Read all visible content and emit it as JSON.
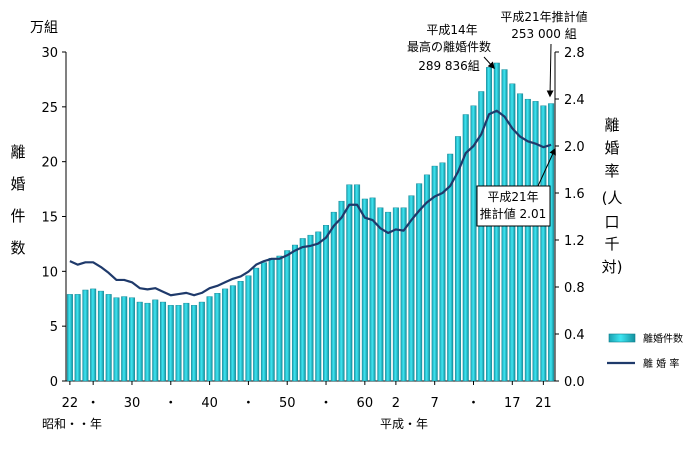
{
  "chart_data": {
    "type": "bar+line",
    "left_unit": "万組",
    "left_axis_label_chars": [
      "離",
      "婚",
      "件",
      "数"
    ],
    "right_axis_label_chars": [
      "離",
      "婚",
      "率",
      "(人",
      "口",
      "千",
      "対)"
    ],
    "ylim_left": [
      0,
      30
    ],
    "left_ticks": [
      "0",
      "5",
      "10",
      "15",
      "20",
      "25",
      "30"
    ],
    "ylim_right": [
      0.0,
      2.8
    ],
    "right_ticks": [
      "0.0",
      "0.4",
      "0.8",
      "1.2",
      "1.6",
      "2.0",
      "2.4",
      "2.8"
    ],
    "x_tick_labels": [
      {
        "label": "22",
        "index": 0
      },
      {
        "label": "・",
        "index": 3
      },
      {
        "label": "30",
        "index": 8
      },
      {
        "label": "・",
        "index": 13
      },
      {
        "label": "40",
        "index": 18
      },
      {
        "label": "・",
        "index": 23
      },
      {
        "label": "50",
        "index": 28
      },
      {
        "label": "・",
        "index": 33
      },
      {
        "label": "60",
        "index": 38
      },
      {
        "label": "2",
        "index": 42
      },
      {
        "label": "7",
        "index": 47
      },
      {
        "label": "・",
        "index": 52
      },
      {
        "label": "17",
        "index": 57
      },
      {
        "label": "21",
        "index": 61
      }
    ],
    "era_labels": {
      "showa": "昭和・・年",
      "heisei": "平成・年"
    },
    "years": [
      "昭和22",
      "23",
      "24",
      "25",
      "26",
      "27",
      "28",
      "29",
      "30",
      "31",
      "32",
      "33",
      "34",
      "35",
      "36",
      "37",
      "38",
      "39",
      "40",
      "41",
      "42",
      "43",
      "44",
      "45",
      "46",
      "47",
      "48",
      "49",
      "50",
      "51",
      "52",
      "53",
      "54",
      "55",
      "56",
      "57",
      "58",
      "59",
      "60",
      "61",
      "62",
      "63",
      "平成元",
      "2",
      "3",
      "4",
      "5",
      "6",
      "7",
      "8",
      "9",
      "10",
      "11",
      "12",
      "13",
      "14",
      "15",
      "16",
      "17",
      "18",
      "19",
      "20",
      "21"
    ],
    "series": [
      {
        "name": "離婚件数",
        "axis": "left",
        "unit": "万組",
        "color": "#33d9e8",
        "values": [
          7.9,
          7.9,
          8.3,
          8.4,
          8.2,
          7.9,
          7.6,
          7.7,
          7.6,
          7.2,
          7.1,
          7.4,
          7.2,
          6.9,
          6.9,
          7.1,
          6.9,
          7.2,
          7.7,
          8.0,
          8.4,
          8.7,
          9.1,
          9.6,
          10.3,
          10.8,
          11.2,
          11.4,
          11.9,
          12.4,
          13.0,
          13.3,
          13.6,
          14.2,
          15.4,
          16.4,
          17.9,
          17.9,
          16.6,
          16.7,
          15.8,
          15.4,
          15.8,
          15.8,
          16.9,
          18.0,
          18.8,
          19.6,
          19.9,
          20.7,
          22.3,
          24.3,
          25.1,
          26.4,
          28.6,
          29.0,
          28.4,
          27.1,
          26.2,
          25.7,
          25.5,
          25.1,
          25.3
        ]
      },
      {
        "name": "離 婚 率",
        "axis": "right",
        "unit": "人口千対",
        "color": "#1f3a6b",
        "values": [
          1.02,
          0.99,
          1.01,
          1.01,
          0.97,
          0.92,
          0.86,
          0.86,
          0.84,
          0.79,
          0.78,
          0.79,
          0.76,
          0.73,
          0.74,
          0.75,
          0.73,
          0.75,
          0.79,
          0.81,
          0.84,
          0.87,
          0.89,
          0.93,
          0.99,
          1.02,
          1.04,
          1.04,
          1.07,
          1.11,
          1.14,
          1.15,
          1.17,
          1.22,
          1.32,
          1.39,
          1.5,
          1.5,
          1.39,
          1.37,
          1.3,
          1.26,
          1.29,
          1.28,
          1.37,
          1.45,
          1.52,
          1.57,
          1.6,
          1.66,
          1.78,
          1.94,
          2.0,
          2.1,
          2.27,
          2.3,
          2.25,
          2.15,
          2.08,
          2.04,
          2.02,
          1.99,
          2.01
        ]
      }
    ],
    "annotations": [
      {
        "lines": [
          "平成14年",
          "最高の離婚件数",
          "289 836組"
        ],
        "target_index": 54
      },
      {
        "lines": [
          "平成21年推計値",
          "253 000 組"
        ],
        "target_index": 62
      },
      {
        "lines": [
          "平成21年",
          "推計値 2.01"
        ],
        "target_index": 62,
        "boxed": true
      }
    ],
    "legend_position": "bottom-right"
  }
}
